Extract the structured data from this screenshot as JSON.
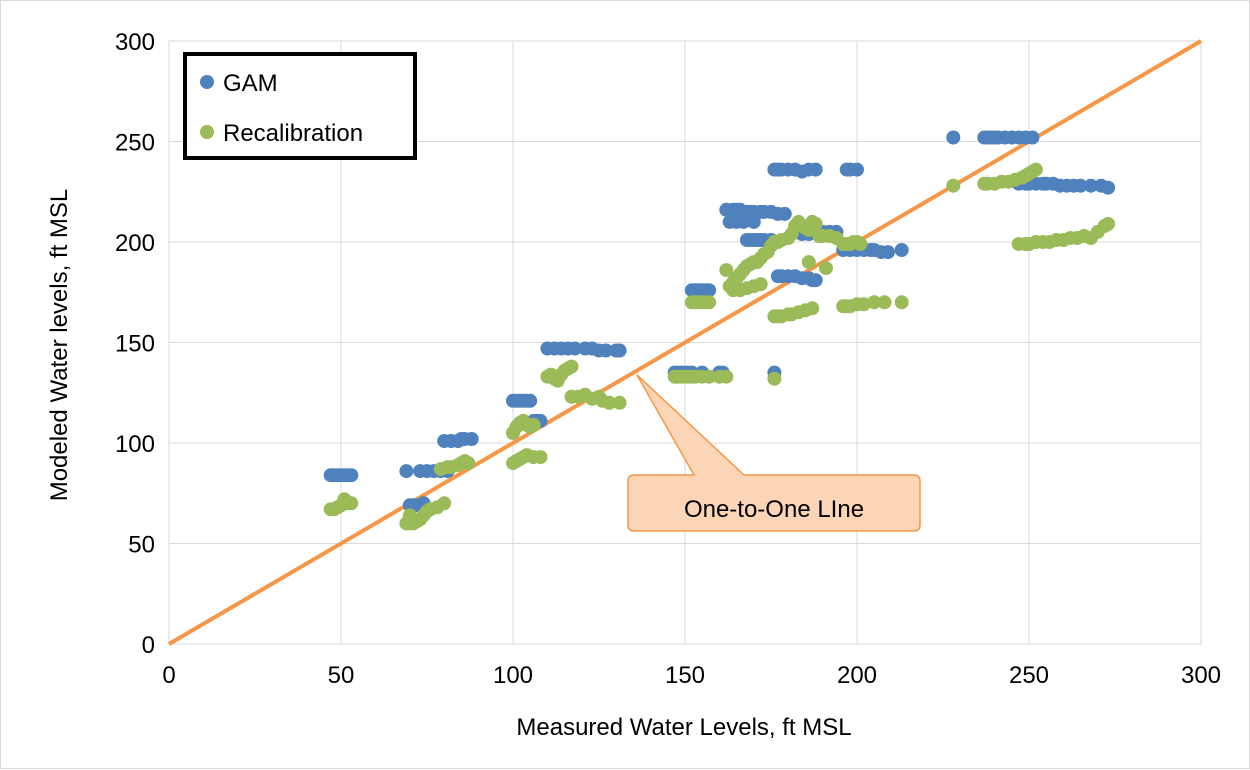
{
  "chart_data": {
    "type": "scatter",
    "title": "",
    "xlabel": "Measured Water Levels, ft MSL",
    "ylabel": "Modeled Water levels, ft MSL",
    "xlim": [
      0,
      300
    ],
    "ylim": [
      0,
      300
    ],
    "xticks": [
      0,
      50,
      100,
      150,
      200,
      250,
      300
    ],
    "yticks": [
      0,
      50,
      100,
      150,
      200,
      250,
      300
    ],
    "grid": true,
    "legend_position": "top-left",
    "series": [
      {
        "name": "GAM",
        "color": "#4f81bd",
        "points": [
          [
            47,
            84
          ],
          [
            48,
            84
          ],
          [
            49,
            84
          ],
          [
            50,
            84
          ],
          [
            51,
            84
          ],
          [
            52,
            84
          ],
          [
            53,
            84
          ],
          [
            69,
            86
          ],
          [
            70,
            69
          ],
          [
            71,
            69
          ],
          [
            72,
            69
          ],
          [
            73,
            69
          ],
          [
            74,
            70
          ],
          [
            73,
            86
          ],
          [
            75,
            86
          ],
          [
            77,
            86
          ],
          [
            79,
            86
          ],
          [
            81,
            86
          ],
          [
            80,
            101
          ],
          [
            82,
            101
          ],
          [
            84,
            101
          ],
          [
            85,
            102
          ],
          [
            86,
            102
          ],
          [
            88,
            102
          ],
          [
            100,
            121
          ],
          [
            101,
            121
          ],
          [
            102,
            121
          ],
          [
            103,
            121
          ],
          [
            104,
            121
          ],
          [
            105,
            121
          ],
          [
            106,
            111
          ],
          [
            107,
            111
          ],
          [
            108,
            111
          ],
          [
            110,
            147
          ],
          [
            112,
            147
          ],
          [
            114,
            147
          ],
          [
            116,
            147
          ],
          [
            118,
            147
          ],
          [
            121,
            147
          ],
          [
            123,
            147
          ],
          [
            125,
            146
          ],
          [
            127,
            146
          ],
          [
            130,
            146
          ],
          [
            131,
            146
          ],
          [
            147,
            135
          ],
          [
            148,
            135
          ],
          [
            149,
            135
          ],
          [
            150,
            135
          ],
          [
            151,
            135
          ],
          [
            152,
            135
          ],
          [
            155,
            135
          ],
          [
            160,
            135
          ],
          [
            161,
            135
          ],
          [
            152,
            176
          ],
          [
            153,
            176
          ],
          [
            154,
            176
          ],
          [
            155,
            176
          ],
          [
            156,
            176
          ],
          [
            157,
            176
          ],
          [
            162,
            216
          ],
          [
            164,
            216
          ],
          [
            165,
            216
          ],
          [
            166,
            216
          ],
          [
            167,
            215
          ],
          [
            168,
            215
          ],
          [
            169,
            215
          ],
          [
            170,
            215
          ],
          [
            172,
            215
          ],
          [
            173,
            215
          ],
          [
            175,
            215
          ],
          [
            177,
            214
          ],
          [
            179,
            214
          ],
          [
            163,
            210
          ],
          [
            165,
            210
          ],
          [
            167,
            210
          ],
          [
            170,
            210
          ],
          [
            168,
            201
          ],
          [
            169,
            201
          ],
          [
            170,
            201
          ],
          [
            171,
            201
          ],
          [
            172,
            201
          ],
          [
            173,
            201
          ],
          [
            175,
            201
          ],
          [
            176,
            236
          ],
          [
            177,
            236
          ],
          [
            178,
            236
          ],
          [
            180,
            236
          ],
          [
            182,
            236
          ],
          [
            184,
            235
          ],
          [
            186,
            236
          ],
          [
            188,
            236
          ],
          [
            197,
            236
          ],
          [
            198,
            236
          ],
          [
            200,
            236
          ],
          [
            177,
            183
          ],
          [
            178,
            183
          ],
          [
            180,
            183
          ],
          [
            182,
            183
          ],
          [
            184,
            182
          ],
          [
            186,
            182
          ],
          [
            187,
            181
          ],
          [
            188,
            181
          ],
          [
            176,
            135
          ],
          [
            184,
            204
          ],
          [
            186,
            204
          ],
          [
            188,
            205
          ],
          [
            190,
            205
          ],
          [
            192,
            205
          ],
          [
            194,
            205
          ],
          [
            196,
            196
          ],
          [
            198,
            196
          ],
          [
            200,
            196
          ],
          [
            202,
            196
          ],
          [
            204,
            196
          ],
          [
            205,
            196
          ],
          [
            207,
            195
          ],
          [
            209,
            195
          ],
          [
            213,
            196
          ],
          [
            228,
            252
          ],
          [
            237,
            252
          ],
          [
            238,
            252
          ],
          [
            239,
            252
          ],
          [
            240,
            252
          ],
          [
            241,
            252
          ],
          [
            243,
            252
          ],
          [
            245,
            252
          ],
          [
            247,
            252
          ],
          [
            249,
            252
          ],
          [
            251,
            252
          ],
          [
            247,
            229
          ],
          [
            249,
            229
          ],
          [
            250,
            229
          ],
          [
            252,
            229
          ],
          [
            254,
            229
          ],
          [
            255,
            229
          ],
          [
            257,
            229
          ],
          [
            259,
            228
          ],
          [
            261,
            228
          ],
          [
            263,
            228
          ],
          [
            265,
            228
          ],
          [
            268,
            228
          ],
          [
            271,
            228
          ],
          [
            273,
            227
          ]
        ]
      },
      {
        "name": "Recalibration",
        "color": "#9bbb59",
        "points": [
          [
            47,
            67
          ],
          [
            48,
            67
          ],
          [
            49,
            68
          ],
          [
            50,
            69
          ],
          [
            51,
            72
          ],
          [
            52,
            70
          ],
          [
            53,
            70
          ],
          [
            69,
            60
          ],
          [
            70,
            60
          ],
          [
            70,
            64
          ],
          [
            71,
            60
          ],
          [
            72,
            61
          ],
          [
            73,
            62
          ],
          [
            74,
            64
          ],
          [
            75,
            66
          ],
          [
            76,
            67
          ],
          [
            78,
            68
          ],
          [
            80,
            70
          ],
          [
            79,
            87
          ],
          [
            81,
            88
          ],
          [
            82,
            88
          ],
          [
            84,
            89
          ],
          [
            85,
            90
          ],
          [
            86,
            91
          ],
          [
            87,
            90
          ],
          [
            100,
            90
          ],
          [
            101,
            91
          ],
          [
            102,
            92
          ],
          [
            103,
            93
          ],
          [
            104,
            94
          ],
          [
            106,
            93
          ],
          [
            108,
            93
          ],
          [
            100,
            105
          ],
          [
            101,
            108
          ],
          [
            102,
            110
          ],
          [
            103,
            111
          ],
          [
            104,
            109
          ],
          [
            105,
            108
          ],
          [
            106,
            109
          ],
          [
            110,
            133
          ],
          [
            111,
            134
          ],
          [
            112,
            132
          ],
          [
            113,
            131
          ],
          [
            114,
            134
          ],
          [
            115,
            136
          ],
          [
            116,
            137
          ],
          [
            117,
            138
          ],
          [
            117,
            123
          ],
          [
            119,
            123
          ],
          [
            121,
            124
          ],
          [
            123,
            122
          ],
          [
            125,
            123
          ],
          [
            126,
            121
          ],
          [
            128,
            120
          ],
          [
            131,
            120
          ],
          [
            147,
            133
          ],
          [
            148,
            133
          ],
          [
            149,
            133
          ],
          [
            150,
            133
          ],
          [
            151,
            133
          ],
          [
            152,
            133
          ],
          [
            153,
            133
          ],
          [
            155,
            133
          ],
          [
            157,
            133
          ],
          [
            160,
            133
          ],
          [
            162,
            133
          ],
          [
            152,
            170
          ],
          [
            153,
            170
          ],
          [
            154,
            170
          ],
          [
            155,
            170
          ],
          [
            156,
            170
          ],
          [
            157,
            170
          ],
          [
            162,
            186
          ],
          [
            163,
            178
          ],
          [
            164,
            180
          ],
          [
            165,
            182
          ],
          [
            166,
            184
          ],
          [
            167,
            186
          ],
          [
            168,
            188
          ],
          [
            169,
            189
          ],
          [
            170,
            190
          ],
          [
            171,
            190
          ],
          [
            172,
            192
          ],
          [
            173,
            194
          ],
          [
            174,
            195
          ],
          [
            164,
            176
          ],
          [
            166,
            176
          ],
          [
            168,
            177
          ],
          [
            170,
            178
          ],
          [
            172,
            179
          ],
          [
            175,
            198
          ],
          [
            176,
            200
          ],
          [
            177,
            200
          ],
          [
            178,
            201
          ],
          [
            180,
            202
          ],
          [
            181,
            204
          ],
          [
            182,
            208
          ],
          [
            183,
            210
          ],
          [
            184,
            208
          ],
          [
            185,
            207
          ],
          [
            186,
            206
          ],
          [
            187,
            210
          ],
          [
            188,
            209
          ],
          [
            189,
            203
          ],
          [
            190,
            203
          ],
          [
            192,
            203
          ],
          [
            194,
            202
          ],
          [
            176,
            132
          ],
          [
            186,
            190
          ],
          [
            191,
            187
          ],
          [
            176,
            163
          ],
          [
            177,
            163
          ],
          [
            178,
            163
          ],
          [
            180,
            164
          ],
          [
            181,
            164
          ],
          [
            183,
            165
          ],
          [
            185,
            166
          ],
          [
            187,
            167
          ],
          [
            196,
            199
          ],
          [
            197,
            199
          ],
          [
            198,
            199
          ],
          [
            199,
            200
          ],
          [
            200,
            200
          ],
          [
            201,
            199
          ],
          [
            196,
            168
          ],
          [
            197,
            168
          ],
          [
            198,
            168
          ],
          [
            200,
            169
          ],
          [
            202,
            169
          ],
          [
            205,
            170
          ],
          [
            208,
            170
          ],
          [
            213,
            170
          ],
          [
            228,
            228
          ],
          [
            237,
            229
          ],
          [
            238,
            229
          ],
          [
            240,
            229
          ],
          [
            242,
            230
          ],
          [
            244,
            230
          ],
          [
            246,
            231
          ],
          [
            248,
            232
          ],
          [
            249,
            233
          ],
          [
            250,
            234
          ],
          [
            251,
            235
          ],
          [
            252,
            236
          ],
          [
            247,
            199
          ],
          [
            249,
            199
          ],
          [
            250,
            199
          ],
          [
            252,
            200
          ],
          [
            254,
            200
          ],
          [
            256,
            200
          ],
          [
            258,
            201
          ],
          [
            260,
            201
          ],
          [
            262,
            202
          ],
          [
            264,
            202
          ],
          [
            266,
            203
          ],
          [
            268,
            202
          ],
          [
            270,
            205
          ],
          [
            272,
            208
          ],
          [
            273,
            209
          ]
        ]
      }
    ],
    "reference_line": {
      "from": [
        0,
        0
      ],
      "to": [
        300,
        300
      ],
      "color": "#f79646"
    },
    "annotation": {
      "text": "One-to-One LIne",
      "points_to": [
        136,
        134
      ]
    }
  }
}
